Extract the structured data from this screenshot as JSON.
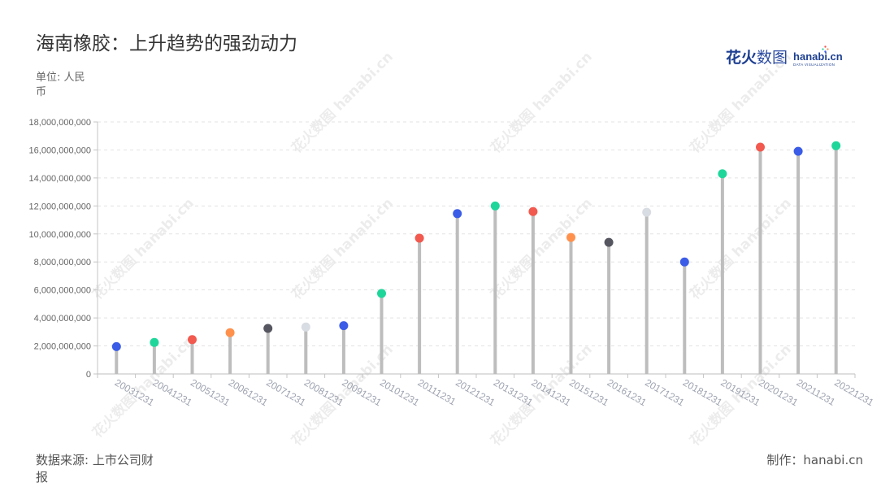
{
  "chart_data": {
    "type": "bar",
    "variant": "lollipop",
    "title": "海南橡胶：上升趋势的强劲动力",
    "ylabel": "单位: 人民币",
    "xlabel": "",
    "categories": [
      "20031231",
      "20041231",
      "20051231",
      "20061231",
      "20071231",
      "20081231",
      "20091231",
      "20101231",
      "20111231",
      "20121231",
      "20131231",
      "20141231",
      "20151231",
      "20161231",
      "20171231",
      "20181231",
      "20191231",
      "20201231",
      "20211231",
      "20221231"
    ],
    "values": [
      1950000000,
      2250000000,
      2450000000,
      2950000000,
      3250000000,
      3350000000,
      3450000000,
      5750000000,
      9700000000,
      11450000000,
      12000000000,
      11600000000,
      9750000000,
      9400000000,
      11550000000,
      8000000000,
      14300000000,
      16200000000,
      15900000000,
      16300000000
    ],
    "point_colors": [
      "#3b5ce6",
      "#1fd69a",
      "#f2594f",
      "#ff914d",
      "#55565f",
      "#d8dce3",
      "#3b5ce6",
      "#1fd69a",
      "#f2594f",
      "#3b5ce6",
      "#1fd69a",
      "#f2594f",
      "#ff914d",
      "#55565f",
      "#d8dce3",
      "#3b5ce6",
      "#1fd69a",
      "#f2594f",
      "#3b5ce6",
      "#1fd69a"
    ],
    "ylim": [
      0,
      18000000000
    ],
    "yticks": [
      0,
      2000000000,
      4000000000,
      6000000000,
      8000000000,
      10000000000,
      12000000000,
      14000000000,
      16000000000,
      18000000000
    ],
    "ytick_labels": [
      "0",
      "2,000,000,000",
      "4,000,000,000",
      "6,000,000,000",
      "8,000,000,000",
      "10,000,000,000",
      "12,000,000,000",
      "14,000,000,000",
      "16,000,000,000",
      "18,000,000,000"
    ],
    "grid": true
  },
  "footer": {
    "source": "数据来源: 上市公司财报",
    "credit": "制作：hanabi.cn"
  },
  "logo": {
    "cn_a": "花火",
    "cn_b": "数图",
    "en": "hanabi.cn",
    "tagline": "DATA VISUALIZATION"
  },
  "watermark_text": "花火数图 hanabi.cn",
  "colors": {
    "stem": "#bdbdbd",
    "grid": "#e3e3e3",
    "axis": "#c4c4c4",
    "title": "#333333",
    "logo": "#1d3f91"
  }
}
